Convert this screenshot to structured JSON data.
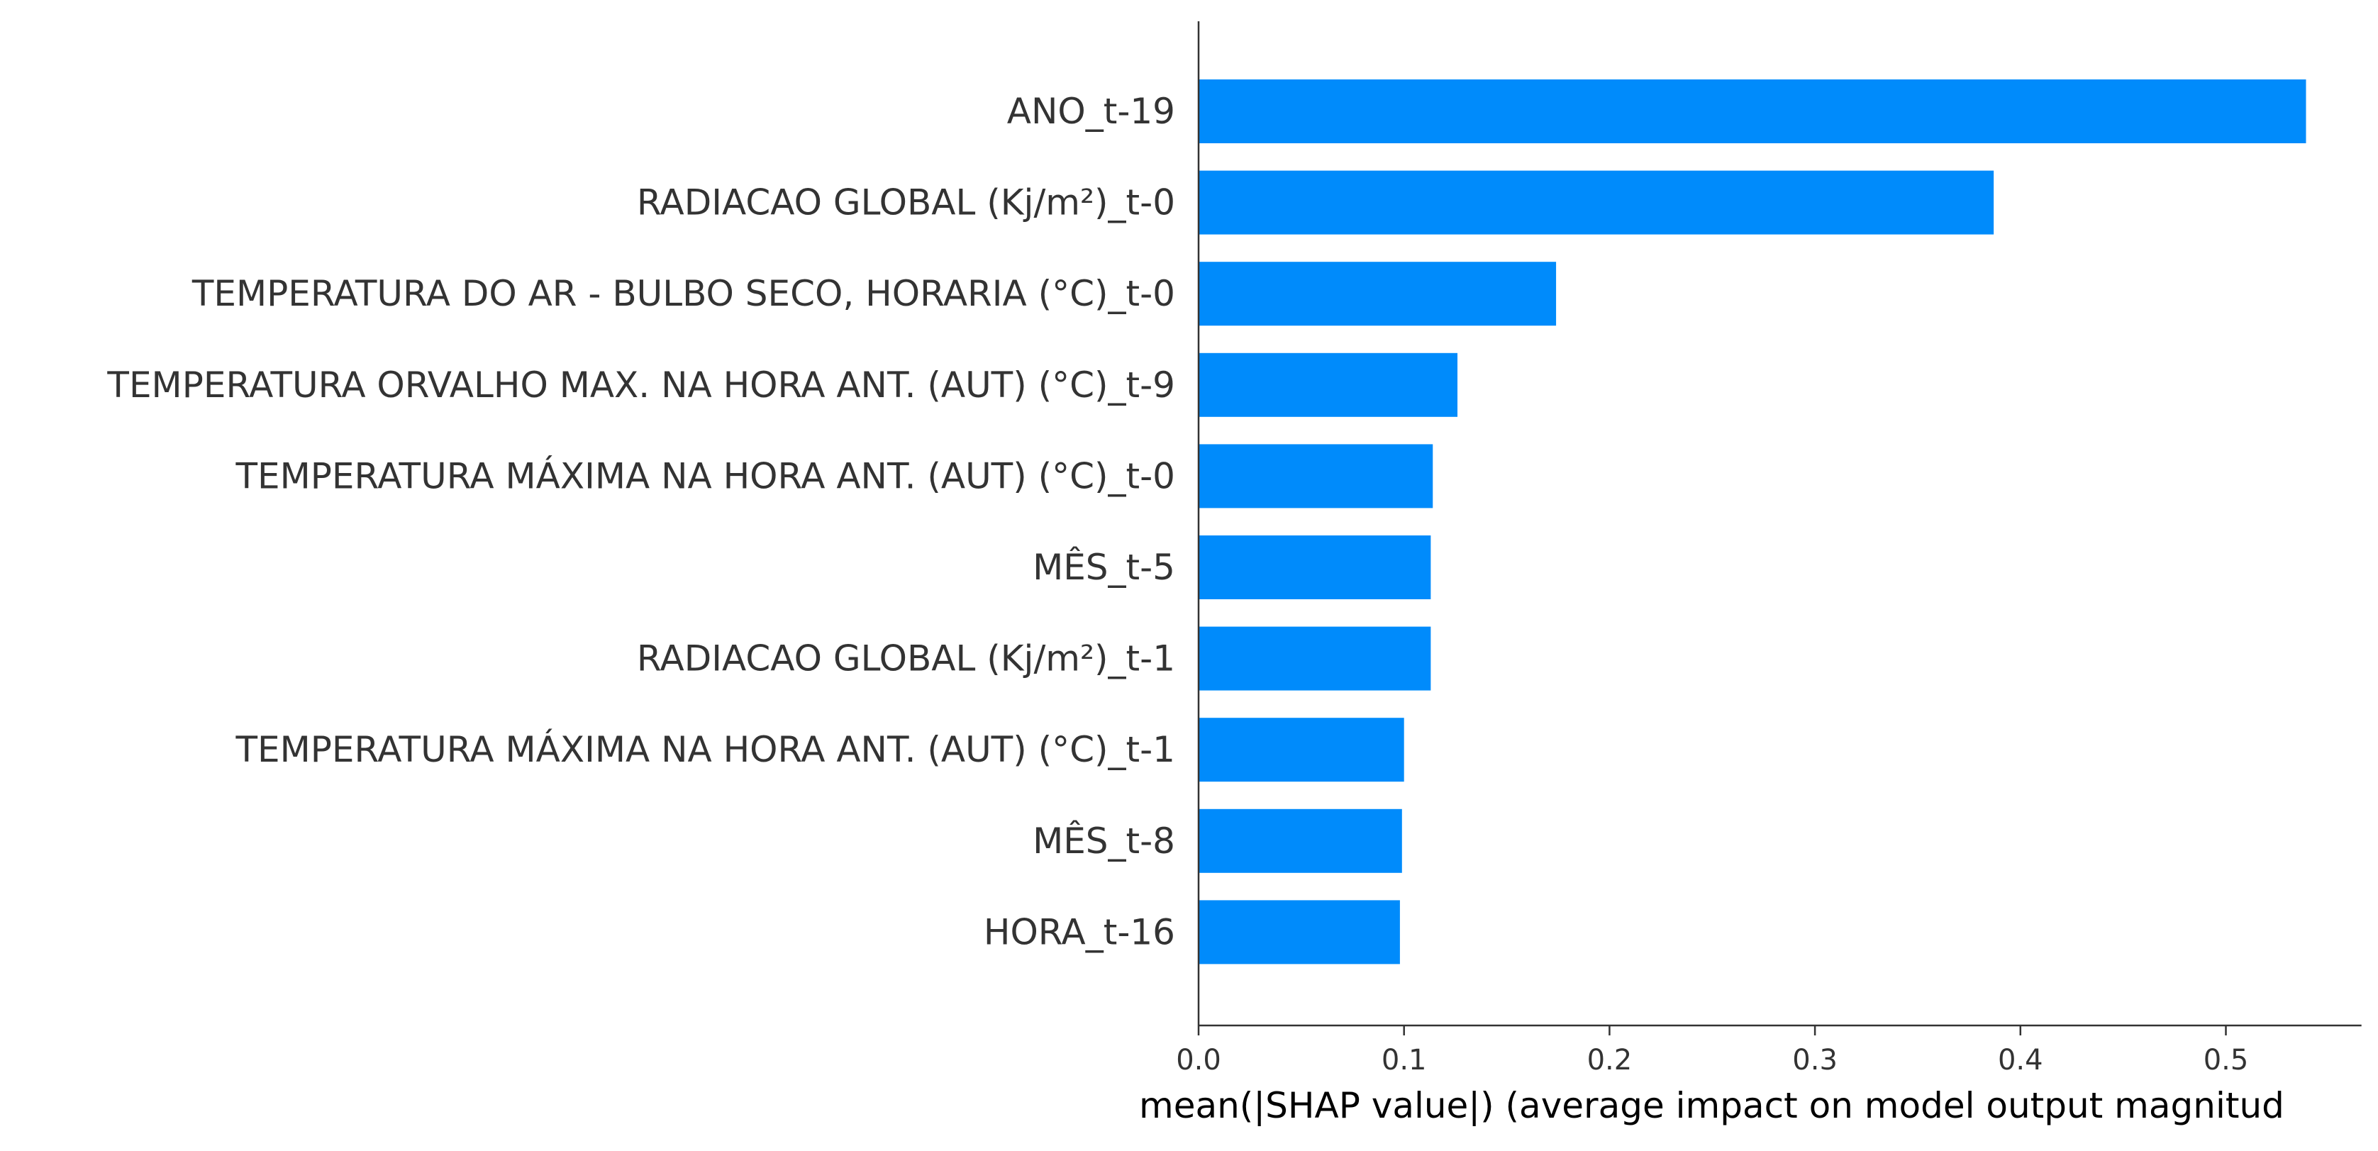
{
  "chart_data": {
    "type": "bar",
    "orientation": "horizontal",
    "title": "",
    "xlabel": "mean(|SHAP value|) (average impact on model output magnitud",
    "ylabel": "",
    "xlim": [
      0,
      0.566
    ],
    "xticks": [
      "0.0",
      "0.1",
      "0.2",
      "0.3",
      "0.4",
      "0.5"
    ],
    "grid": false,
    "legend": "none",
    "bar_color": "#008bfb",
    "categories": [
      "ANO_t-19",
      "RADIACAO GLOBAL (Kj/m²)_t-0",
      "TEMPERATURA DO AR - BULBO SECO, HORARIA (°C)_t-0",
      "TEMPERATURA ORVALHO MAX. NA HORA ANT. (AUT) (°C)_t-9",
      "TEMPERATURA MÁXIMA NA HORA ANT. (AUT) (°C)_t-0",
      "MÊS_t-5",
      "RADIACAO GLOBAL (Kj/m²)_t-1",
      "TEMPERATURA MÁXIMA NA HORA ANT. (AUT) (°C)_t-1",
      "MÊS_t-8",
      "HORA_t-16"
    ],
    "values": [
      0.539,
      0.387,
      0.174,
      0.126,
      0.114,
      0.113,
      0.113,
      0.1,
      0.099,
      0.098
    ]
  }
}
